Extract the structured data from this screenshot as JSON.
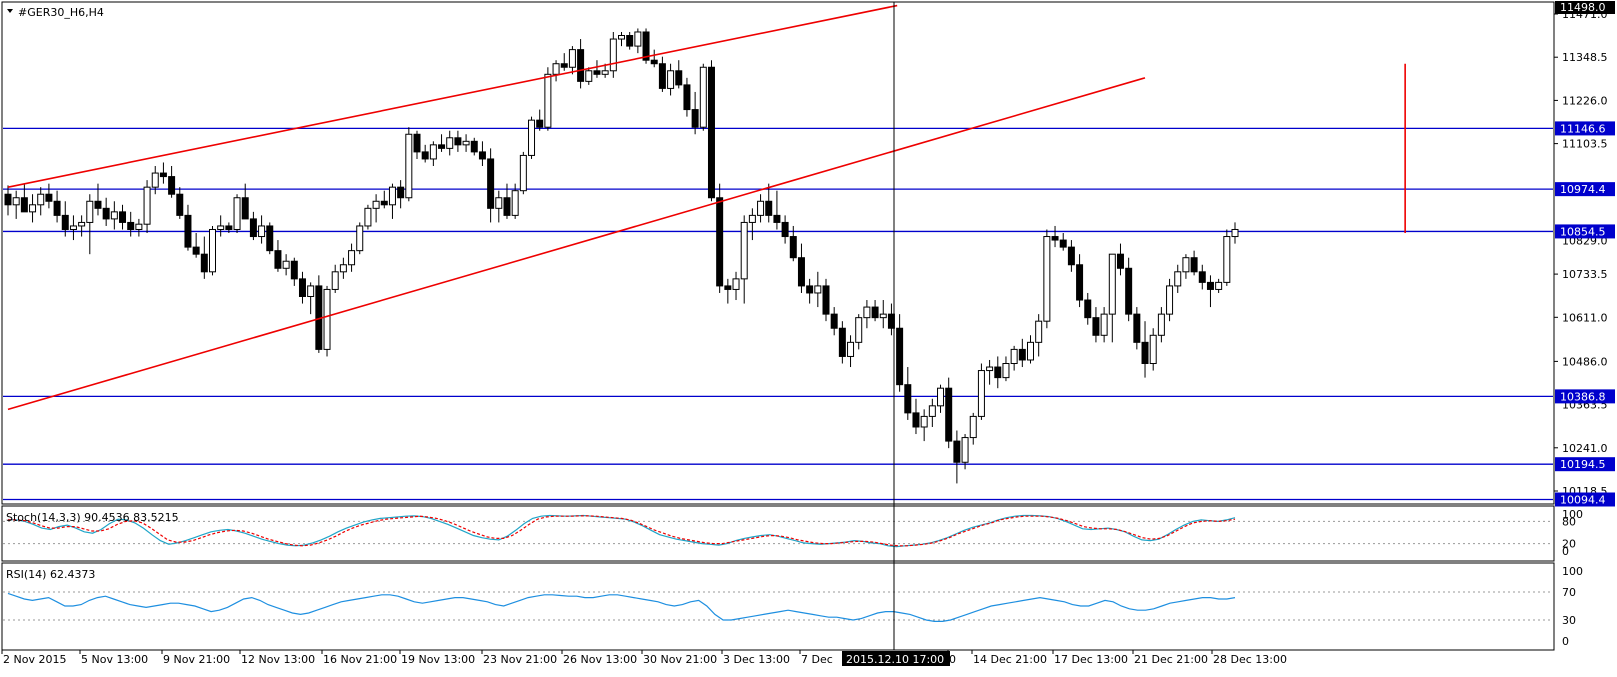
{
  "chart_data": {
    "type": "candlestick",
    "symbol_title": "#GER30_H6,H4",
    "y_ticks": [
      "11471.0",
      "11348.5",
      "11226.0",
      "11103.5",
      "10733.5",
      "10611.0",
      "10486.0",
      "10241.0",
      "10118.5"
    ],
    "current_price_label": "11498.0",
    "price_level_labels": [
      "11146.6",
      "10974.4",
      "10854.5",
      "10386.8",
      "10194.5",
      "10094.4"
    ],
    "price_levels": [
      11146.6,
      10974.4,
      10854.5,
      10386.8,
      10194.5,
      10094.4
    ],
    "hidden_tick_labels": [
      "10829.0",
      "10363.5"
    ],
    "x_labels": [
      "2 Nov 2015",
      "5 Nov 13:00",
      "9 Nov 21:00",
      "12 Nov 13:00",
      "16 Nov 21:00",
      "19 Nov 13:00",
      "23 Nov 21:00",
      "26 Nov 13:00",
      "30 Nov 21:00",
      "3 Dec 13:00",
      "7 Dec",
      "0",
      "14 Dec 21:00",
      "17 Dec 13:00",
      "21 Dec 21:00",
      "28 Dec 13:00"
    ],
    "crosshair_time_label": "2015.12.10 17:00",
    "candles_ohlc": [
      [
        10960,
        10985,
        10900,
        10930
      ],
      [
        10930,
        10970,
        10890,
        10950
      ],
      [
        10950,
        10990,
        10920,
        10910
      ],
      [
        10910,
        10960,
        10880,
        10930
      ],
      [
        10930,
        10980,
        10900,
        10960
      ],
      [
        10960,
        10990,
        10920,
        10940
      ],
      [
        10940,
        10970,
        10880,
        10900
      ],
      [
        10900,
        10940,
        10840,
        10860
      ],
      [
        10860,
        10900,
        10830,
        10870
      ],
      [
        10870,
        10900,
        10840,
        10880
      ],
      [
        10880,
        10960,
        10790,
        10940
      ],
      [
        10940,
        10990,
        10900,
        10920
      ],
      [
        10920,
        10950,
        10870,
        10890
      ],
      [
        10890,
        10940,
        10860,
        10910
      ],
      [
        10910,
        10930,
        10860,
        10880
      ],
      [
        10880,
        10910,
        10840,
        10860
      ],
      [
        10860,
        10890,
        10840,
        10875
      ],
      [
        10875,
        11000,
        10850,
        10980
      ],
      [
        10980,
        11040,
        10960,
        11020
      ],
      [
        11020,
        11050,
        10990,
        11010
      ],
      [
        11010,
        11040,
        10950,
        10960
      ],
      [
        10960,
        10980,
        10890,
        10900
      ],
      [
        10900,
        10930,
        10800,
        10810
      ],
      [
        10810,
        10850,
        10780,
        10790
      ],
      [
        10790,
        10840,
        10720,
        10740
      ],
      [
        10740,
        10870,
        10730,
        10860
      ],
      [
        10860,
        10900,
        10840,
        10870
      ],
      [
        10870,
        10880,
        10850,
        10860
      ],
      [
        10860,
        10960,
        10850,
        10950
      ],
      [
        10950,
        10990,
        10900,
        10890
      ],
      [
        10890,
        10910,
        10830,
        10840
      ],
      [
        10840,
        10900,
        10820,
        10870
      ],
      [
        10870,
        10880,
        10790,
        10800
      ],
      [
        10800,
        10830,
        10740,
        10750
      ],
      [
        10750,
        10790,
        10730,
        10770
      ],
      [
        10770,
        10780,
        10700,
        10720
      ],
      [
        10720,
        10740,
        10650,
        10670
      ],
      [
        10670,
        10710,
        10620,
        10700
      ],
      [
        10700,
        10730,
        10510,
        10520
      ],
      [
        10520,
        10700,
        10500,
        10690
      ],
      [
        10690,
        10760,
        10680,
        10740
      ],
      [
        10740,
        10780,
        10720,
        10760
      ],
      [
        10760,
        10820,
        10740,
        10800
      ],
      [
        10800,
        10880,
        10790,
        10870
      ],
      [
        10870,
        10930,
        10860,
        10920
      ],
      [
        10920,
        10960,
        10880,
        10940
      ],
      [
        10940,
        10970,
        10920,
        10930
      ],
      [
        10930,
        10990,
        10890,
        10980
      ],
      [
        10980,
        11000,
        10920,
        10950
      ],
      [
        10950,
        11150,
        10940,
        11130
      ],
      [
        11130,
        11140,
        11060,
        11080
      ],
      [
        11080,
        11100,
        11050,
        11060
      ],
      [
        11060,
        11110,
        11040,
        11100
      ],
      [
        11100,
        11130,
        11080,
        11090
      ],
      [
        11090,
        11140,
        11070,
        11120
      ],
      [
        11120,
        11140,
        11080,
        11100
      ],
      [
        11100,
        11130,
        11080,
        11110
      ],
      [
        11110,
        11120,
        11070,
        11080
      ],
      [
        11080,
        11110,
        11040,
        11060
      ],
      [
        11060,
        11090,
        10880,
        10920
      ],
      [
        10920,
        10970,
        10880,
        10950
      ],
      [
        10950,
        10990,
        10890,
        10900
      ],
      [
        10900,
        10990,
        10890,
        10970
      ],
      [
        10970,
        11080,
        10960,
        11070
      ],
      [
        11070,
        11180,
        11060,
        11170
      ],
      [
        11170,
        11200,
        11140,
        11150
      ],
      [
        11150,
        11320,
        11140,
        11300
      ],
      [
        11300,
        11340,
        11280,
        11330
      ],
      [
        11330,
        11360,
        11310,
        11320
      ],
      [
        11320,
        11380,
        11300,
        11370
      ],
      [
        11370,
        11400,
        11260,
        11280
      ],
      [
        11280,
        11320,
        11270,
        11310
      ],
      [
        11310,
        11340,
        11290,
        11300
      ],
      [
        11300,
        11330,
        11290,
        11310
      ],
      [
        11310,
        11420,
        11290,
        11400
      ],
      [
        11400,
        11420,
        11380,
        11410
      ],
      [
        11410,
        11420,
        11370,
        11380
      ],
      [
        11380,
        11430,
        11360,
        11420
      ],
      [
        11420,
        11430,
        11330,
        11340
      ],
      [
        11340,
        11370,
        11320,
        11330
      ],
      [
        11330,
        11350,
        11250,
        11260
      ],
      [
        11260,
        11330,
        11240,
        11310
      ],
      [
        11310,
        11340,
        11260,
        11270
      ],
      [
        11270,
        11290,
        11180,
        11200
      ],
      [
        11200,
        11250,
        11130,
        11150
      ],
      [
        11150,
        11330,
        11140,
        11320
      ],
      [
        11320,
        11340,
        10940,
        10950
      ],
      [
        10950,
        10990,
        10680,
        10700
      ],
      [
        10700,
        10720,
        10650,
        10690
      ],
      [
        10690,
        10740,
        10660,
        10720
      ],
      [
        10720,
        10900,
        10650,
        10880
      ],
      [
        10880,
        10920,
        10830,
        10900
      ],
      [
        10900,
        10960,
        10880,
        10940
      ],
      [
        10940,
        10990,
        10880,
        10900
      ],
      [
        10900,
        10970,
        10860,
        10880
      ],
      [
        10880,
        10900,
        10820,
        10840
      ],
      [
        10840,
        10870,
        10770,
        10780
      ],
      [
        10780,
        10820,
        10680,
        10700
      ],
      [
        10700,
        10720,
        10650,
        10680
      ],
      [
        10680,
        10740,
        10640,
        10700
      ],
      [
        10700,
        10720,
        10600,
        10620
      ],
      [
        10620,
        10640,
        10560,
        10580
      ],
      [
        10580,
        10600,
        10480,
        10500
      ],
      [
        10500,
        10560,
        10470,
        10540
      ],
      [
        10540,
        10620,
        10520,
        10610
      ],
      [
        10610,
        10660,
        10580,
        10640
      ],
      [
        10640,
        10660,
        10600,
        10610
      ],
      [
        10610,
        10660,
        10580,
        10620
      ],
      [
        10620,
        10650,
        10560,
        10580
      ],
      [
        10580,
        10620,
        10400,
        10420
      ],
      [
        10420,
        10470,
        10320,
        10340
      ],
      [
        10340,
        10380,
        10280,
        10300
      ],
      [
        10300,
        10350,
        10260,
        10330
      ],
      [
        10330,
        10380,
        10300,
        10360
      ],
      [
        10360,
        10420,
        10340,
        10410
      ],
      [
        10410,
        10440,
        10240,
        10260
      ],
      [
        10260,
        10290,
        10140,
        10200
      ],
      [
        10200,
        10280,
        10180,
        10270
      ],
      [
        10270,
        10340,
        10250,
        10330
      ],
      [
        10330,
        10480,
        10320,
        10460
      ],
      [
        10460,
        10490,
        10420,
        10470
      ],
      [
        10470,
        10500,
        10410,
        10440
      ],
      [
        10440,
        10500,
        10430,
        10480
      ],
      [
        10480,
        10530,
        10460,
        10520
      ],
      [
        10520,
        10550,
        10470,
        10490
      ],
      [
        10490,
        10560,
        10480,
        10540
      ],
      [
        10540,
        10620,
        10500,
        10600
      ],
      [
        10600,
        10860,
        10580,
        10840
      ],
      [
        10840,
        10870,
        10810,
        10830
      ],
      [
        10830,
        10850,
        10800,
        10810
      ],
      [
        10810,
        10830,
        10740,
        10760
      ],
      [
        10760,
        10790,
        10640,
        10660
      ],
      [
        10660,
        10680,
        10590,
        10610
      ],
      [
        10610,
        10640,
        10540,
        10560
      ],
      [
        10560,
        10640,
        10540,
        10620
      ],
      [
        10620,
        10720,
        10540,
        10790
      ],
      [
        10790,
        10820,
        10730,
        10750
      ],
      [
        10750,
        10780,
        10600,
        10620
      ],
      [
        10620,
        10640,
        10520,
        10540
      ],
      [
        10540,
        10600,
        10440,
        10480
      ],
      [
        10480,
        10580,
        10460,
        10560
      ],
      [
        10560,
        10640,
        10540,
        10620
      ],
      [
        10620,
        10720,
        10600,
        10700
      ],
      [
        10700,
        10760,
        10680,
        10740
      ],
      [
        10740,
        10790,
        10720,
        10780
      ],
      [
        10780,
        10800,
        10730,
        10740
      ],
      [
        10740,
        10760,
        10690,
        10710
      ],
      [
        10710,
        10730,
        10640,
        10690
      ],
      [
        10690,
        10720,
        10680,
        10710
      ],
      [
        10710,
        10860,
        10700,
        10840
      ],
      [
        10840,
        10880,
        10820,
        10860
      ]
    ],
    "trend_lines": [
      {
        "x0": 0,
        "y0": 10980,
        "x1": 108.7,
        "y1": 11495
      },
      {
        "x0": 0,
        "y0": 10350,
        "x1": 139,
        "y1": 11290
      },
      {
        "x0": 170.8,
        "y0": 10850,
        "x1": 170.8,
        "y1": 11330
      }
    ],
    "indicator_stochastic": {
      "label": "Stoch(14,3,3) 90.4536 83.5215",
      "levels": [
        "100",
        "80",
        "20",
        "0"
      ],
      "k": [
        85,
        84,
        80,
        72,
        62,
        58,
        66,
        70,
        62,
        52,
        48,
        58,
        74,
        86,
        84,
        76,
        62,
        44,
        28,
        18,
        22,
        28,
        36,
        44,
        52,
        56,
        58,
        54,
        48,
        40,
        32,
        26,
        20,
        16,
        14,
        16,
        22,
        30,
        40,
        52,
        62,
        70,
        78,
        84,
        88,
        90,
        92,
        94,
        95,
        93,
        88,
        80,
        72,
        62,
        52,
        42,
        36,
        32,
        30,
        40,
        56,
        74,
        88,
        94,
        96,
        95,
        94,
        95,
        96,
        94,
        92,
        90,
        88,
        86,
        78,
        68,
        56,
        44,
        38,
        32,
        28,
        24,
        20,
        18,
        16,
        20,
        28,
        34,
        38,
        42,
        44,
        40,
        34,
        28,
        22,
        20,
        18,
        20,
        22,
        24,
        28,
        26,
        22,
        20,
        14,
        12,
        14,
        16,
        18,
        22,
        28,
        36,
        46,
        56,
        64,
        70,
        76,
        84,
        90,
        94,
        96,
        96,
        95,
        93,
        88,
        80,
        70,
        60,
        58,
        60,
        62,
        58,
        52,
        40,
        30,
        28,
        32,
        44,
        58,
        70,
        80,
        84,
        82,
        80,
        84,
        90
      ],
      "d": [
        84,
        84,
        82,
        76,
        68,
        62,
        62,
        66,
        66,
        60,
        54,
        54,
        60,
        72,
        80,
        82,
        76,
        62,
        46,
        30,
        24,
        24,
        28,
        36,
        44,
        50,
        54,
        56,
        54,
        48,
        40,
        32,
        26,
        20,
        16,
        14,
        16,
        22,
        30,
        40,
        52,
        62,
        70,
        76,
        82,
        86,
        88,
        90,
        92,
        94,
        92,
        88,
        82,
        74,
        64,
        54,
        46,
        38,
        34,
        34,
        42,
        56,
        72,
        86,
        92,
        94,
        94,
        94,
        95,
        95,
        94,
        92,
        90,
        88,
        84,
        76,
        66,
        56,
        48,
        40,
        34,
        30,
        26,
        22,
        20,
        20,
        24,
        28,
        32,
        36,
        40,
        42,
        40,
        36,
        30,
        26,
        22,
        20,
        20,
        22,
        24,
        26,
        26,
        24,
        20,
        16,
        14,
        14,
        16,
        18,
        22,
        28,
        36,
        46,
        54,
        62,
        70,
        76,
        84,
        88,
        92,
        94,
        94,
        94,
        92,
        88,
        82,
        74,
        66,
        62,
        60,
        60,
        58,
        52,
        44,
        36,
        32,
        34,
        42,
        54,
        66,
        76,
        80,
        82,
        80,
        82,
        86
      ]
    },
    "indicator_rsi": {
      "label": "RSI(14) 62.4373",
      "levels": [
        "100",
        "70",
        "30",
        "0"
      ],
      "values": [
        68,
        64,
        60,
        58,
        60,
        62,
        56,
        50,
        50,
        52,
        58,
        62,
        64,
        60,
        56,
        52,
        50,
        48,
        50,
        52,
        54,
        54,
        52,
        50,
        46,
        42,
        44,
        48,
        54,
        60,
        62,
        58,
        52,
        48,
        44,
        40,
        38,
        40,
        44,
        48,
        52,
        56,
        58,
        60,
        62,
        64,
        66,
        66,
        64,
        60,
        56,
        54,
        56,
        58,
        60,
        62,
        62,
        60,
        58,
        56,
        52,
        50,
        54,
        58,
        62,
        64,
        66,
        66,
        65,
        64,
        64,
        62,
        62,
        64,
        66,
        66,
        64,
        62,
        60,
        58,
        56,
        52,
        50,
        52,
        56,
        58,
        50,
        38,
        30,
        30,
        32,
        34,
        36,
        38,
        40,
        42,
        44,
        42,
        40,
        38,
        36,
        34,
        34,
        32,
        30,
        32,
        36,
        40,
        42,
        42,
        40,
        38,
        34,
        30,
        28,
        28,
        30,
        34,
        38,
        42,
        46,
        50,
        52,
        54,
        56,
        58,
        60,
        62,
        60,
        58,
        56,
        52,
        50,
        50,
        54,
        58,
        56,
        50,
        46,
        44,
        44,
        46,
        50,
        54,
        56,
        58,
        60,
        62,
        62,
        60,
        60,
        62
      ]
    }
  }
}
